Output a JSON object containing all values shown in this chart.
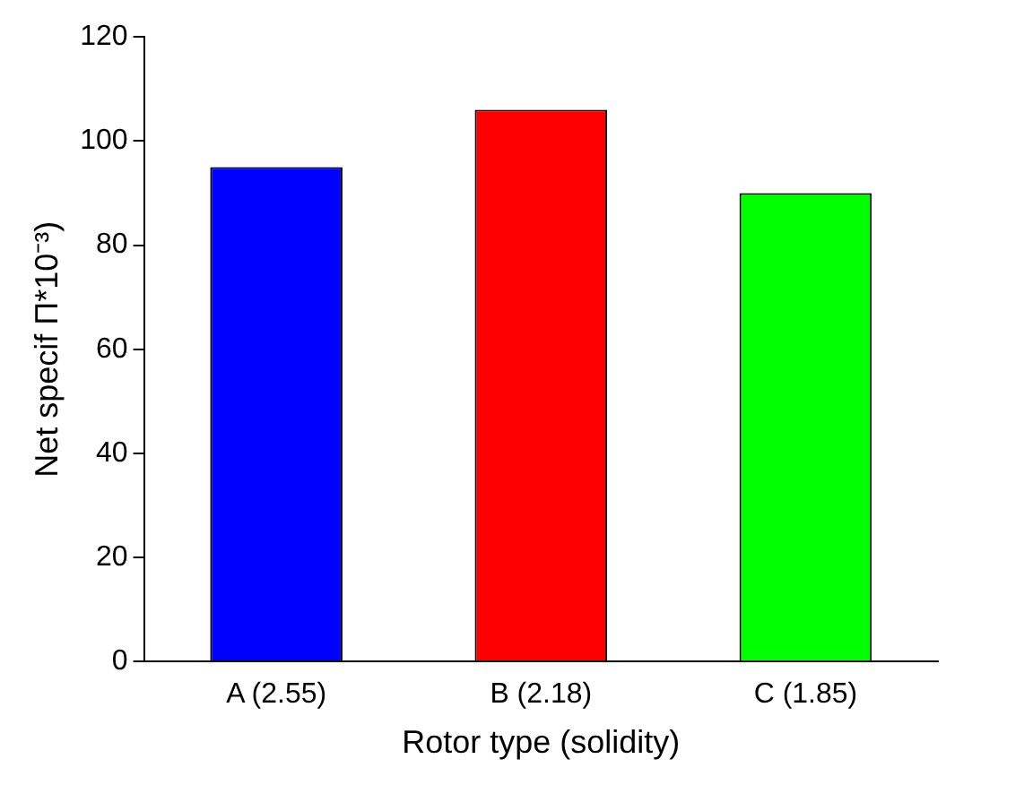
{
  "chart_data": {
    "type": "bar",
    "xlabel": "Rotor type (solidity)",
    "ylabel": "Net specif Π*10⁻³)",
    "categories": [
      "A (2.55)",
      "B (2.18)",
      "C (1.85)"
    ],
    "values": [
      95,
      106,
      90
    ],
    "colors": [
      "#0000ff",
      "#ff0000",
      "#00ff00"
    ],
    "ylim": [
      0,
      120
    ],
    "yticks": [
      0,
      20,
      40,
      60,
      80,
      100,
      120
    ],
    "grid": false
  }
}
